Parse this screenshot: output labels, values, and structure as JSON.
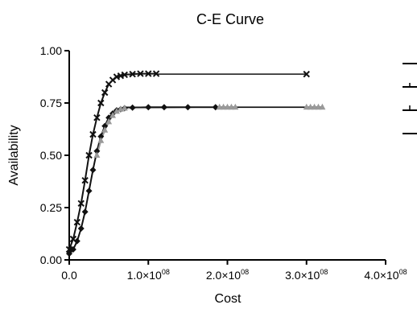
{
  "chart_data": {
    "type": "scatter",
    "title": "C-E Curve",
    "xlabel": "Cost",
    "ylabel": "Availability",
    "xlim": [
      0,
      400000000
    ],
    "ylim": [
      0,
      1.0
    ],
    "x_ticks": [
      {
        "value": 0,
        "base": "0.0",
        "exp": ""
      },
      {
        "value": 100000000,
        "base": "1.0×10",
        "exp": "08"
      },
      {
        "value": 200000000,
        "base": "2.0×10",
        "exp": "08"
      },
      {
        "value": 300000000,
        "base": "3.0×10",
        "exp": "08"
      },
      {
        "value": 400000000,
        "base": "4.0×10",
        "exp": "08"
      }
    ],
    "y_ticks": [
      {
        "value": 0,
        "label": "0.00"
      },
      {
        "value": 0.25,
        "label": "0.25"
      },
      {
        "value": 0.5,
        "label": "0.50"
      },
      {
        "value": 0.75,
        "label": "0.75"
      },
      {
        "value": 1.0,
        "label": "1.00"
      }
    ],
    "grid": false,
    "legend": {
      "placement": "right",
      "entry_count": 4
    },
    "series": [
      {
        "color": "#111111",
        "marker": "x",
        "curve_points": [
          [
            0,
            0.05
          ],
          [
            5000000,
            0.1
          ],
          [
            10000000,
            0.18
          ],
          [
            15000000,
            0.27
          ],
          [
            20000000,
            0.38
          ],
          [
            25000000,
            0.5
          ],
          [
            30000000,
            0.6
          ],
          [
            35000000,
            0.68
          ],
          [
            40000000,
            0.75
          ],
          [
            45000000,
            0.8
          ],
          [
            50000000,
            0.84
          ],
          [
            55000000,
            0.86
          ],
          [
            60000000,
            0.875
          ],
          [
            65000000,
            0.88
          ],
          [
            70000000,
            0.885
          ],
          [
            80000000,
            0.888
          ],
          [
            90000000,
            0.89
          ],
          [
            100000000,
            0.89
          ],
          [
            110000000,
            0.89
          ]
        ],
        "extra_points": [
          [
            300000000,
            0.888
          ]
        ]
      },
      {
        "color": "#111111",
        "marker": "diamond",
        "curve_points": [
          [
            0,
            0.03
          ],
          [
            5000000,
            0.05
          ],
          [
            10000000,
            0.09
          ],
          [
            15000000,
            0.15
          ],
          [
            20000000,
            0.23
          ],
          [
            25000000,
            0.33
          ],
          [
            30000000,
            0.43
          ],
          [
            35000000,
            0.52
          ],
          [
            40000000,
            0.59
          ],
          [
            45000000,
            0.64
          ],
          [
            50000000,
            0.68
          ],
          [
            55000000,
            0.7
          ],
          [
            60000000,
            0.715
          ],
          [
            65000000,
            0.72
          ],
          [
            70000000,
            0.725
          ],
          [
            80000000,
            0.728
          ],
          [
            100000000,
            0.73
          ],
          [
            120000000,
            0.73
          ],
          [
            150000000,
            0.73
          ],
          [
            185000000,
            0.73
          ]
        ],
        "extra_points": []
      },
      {
        "color": "#9a9a9a",
        "marker": "triangle",
        "curve_points": [
          [
            35000000,
            0.5
          ],
          [
            40000000,
            0.57
          ],
          [
            45000000,
            0.62
          ],
          [
            50000000,
            0.66
          ],
          [
            55000000,
            0.69
          ],
          [
            60000000,
            0.71
          ],
          [
            65000000,
            0.72
          ],
          [
            70000000,
            0.725
          ],
          [
            190000000,
            0.73
          ],
          [
            195000000,
            0.73
          ],
          [
            200000000,
            0.73
          ],
          [
            205000000,
            0.73
          ],
          [
            210000000,
            0.73
          ],
          [
            300000000,
            0.73
          ],
          [
            305000000,
            0.73
          ],
          [
            310000000,
            0.73
          ],
          [
            315000000,
            0.73
          ],
          [
            320000000,
            0.73
          ]
        ],
        "extra_points": []
      }
    ],
    "lines": [
      {
        "color": "#111111",
        "from": [
          110000000,
          0.888
        ],
        "to": [
          300000000,
          0.888
        ]
      },
      {
        "color": "#111111",
        "from": [
          70000000,
          0.73
        ],
        "to": [
          320000000,
          0.73
        ]
      }
    ]
  }
}
